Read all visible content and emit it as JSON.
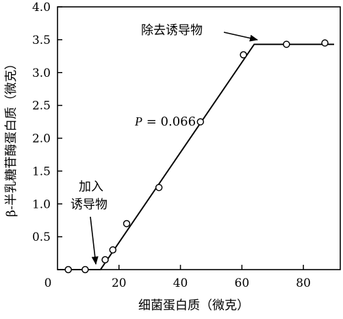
{
  "chart_data": {
    "type": "scatter",
    "title": "",
    "xlabel": "细菌蛋白质（微克）",
    "ylabel": "β-半乳糖苷酶蛋白质（微克）",
    "xlim": [
      0,
      92
    ],
    "ylim": [
      0,
      4.0
    ],
    "xticks": [
      0,
      20,
      40,
      60,
      80
    ],
    "yticks": [
      0.5,
      1.0,
      1.5,
      2.0,
      2.5,
      3.0,
      3.5,
      4.0
    ],
    "xtick_labels": [
      "0",
      "20",
      "40",
      "60",
      "80"
    ],
    "ytick_labels": [
      "0.5",
      "1.0",
      "1.5",
      "2.0",
      "2.5",
      "3.0",
      "3.5",
      "4.0"
    ],
    "grid": false,
    "legend": "none",
    "series": [
      {
        "x": [
          3.5,
          9,
          15.5,
          18,
          22.5,
          33,
          46.5,
          60.5,
          74.5,
          87
        ],
        "y": [
          0.0,
          0.0,
          0.15,
          0.3,
          0.7,
          1.25,
          2.25,
          3.27,
          3.43,
          3.45
        ]
      }
    ],
    "fit_line": [
      [
        0,
        0.0
      ],
      [
        14,
        0.0
      ],
      [
        64,
        3.43
      ],
      [
        90,
        3.43
      ]
    ],
    "annotations": {
      "slope_label": "P = 0.066",
      "add_inducer_line1": "加入",
      "add_inducer_line2": "诱导物",
      "remove_inducer": "除去诱导物"
    }
  }
}
